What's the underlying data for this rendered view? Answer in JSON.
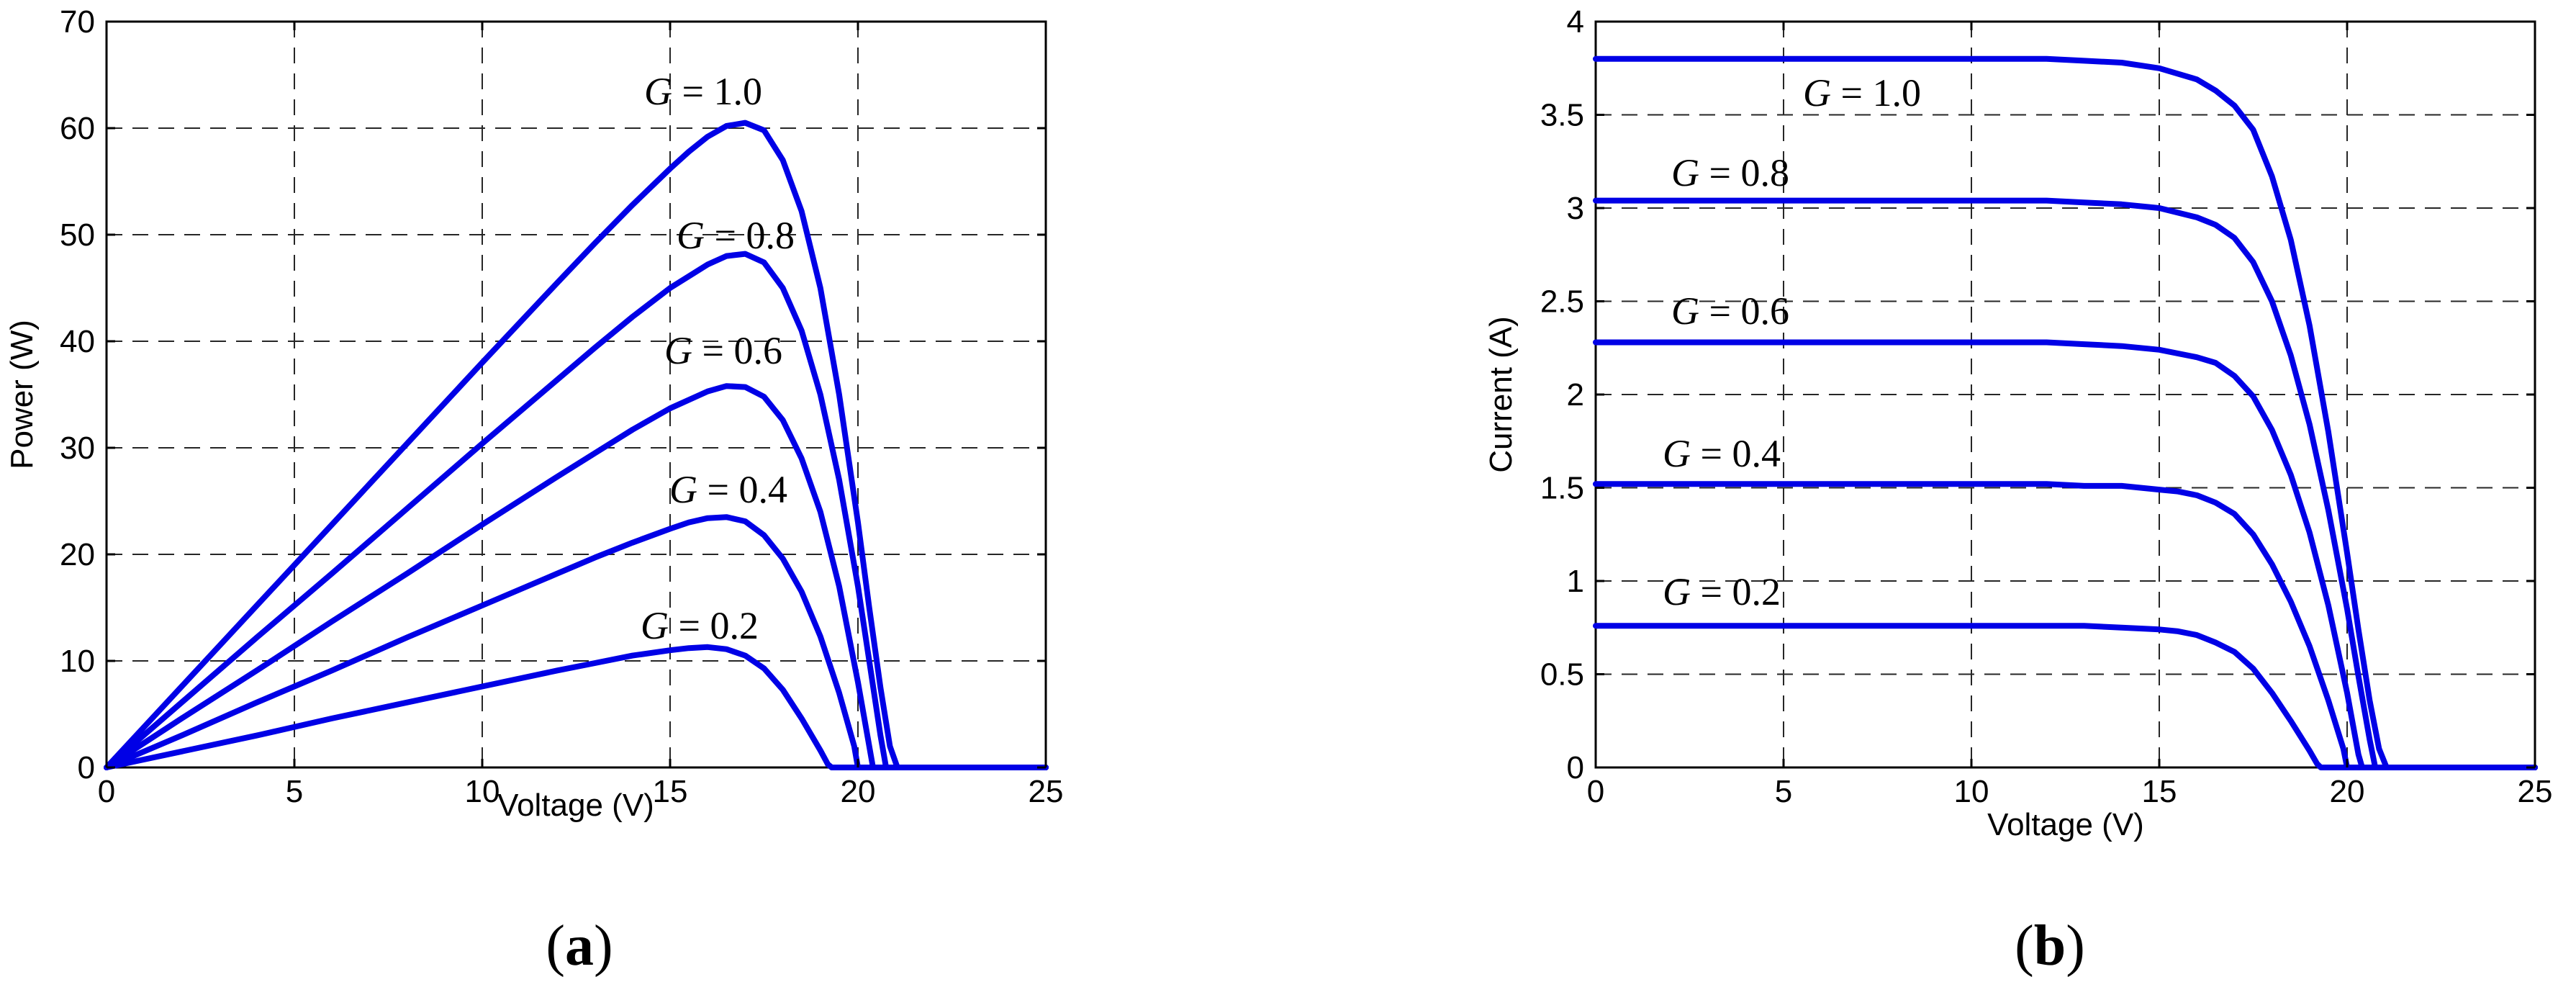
{
  "chart_data": [
    {
      "type": "line",
      "panel_label_open": "(",
      "panel_label": "a",
      "panel_label_close": ")",
      "xlabel": "Voltage (V)",
      "ylabel": "Power (W)",
      "xlim": [
        0,
        25
      ],
      "ylim": [
        0,
        70
      ],
      "xticks": [
        0,
        5,
        10,
        15,
        20,
        25
      ],
      "yticks": [
        0,
        10,
        20,
        30,
        40,
        50,
        60,
        70
      ],
      "grid": true,
      "line_color": "#0000e6",
      "series": [
        {
          "name": "G = 1.0",
          "label_g": "G",
          "label_eq": " = 1.0",
          "x": [
            0,
            2,
            4,
            6,
            8,
            10,
            12,
            13,
            14,
            15,
            15.5,
            16,
            16.5,
            17,
            17.5,
            18,
            18.5,
            19,
            19.5,
            20,
            20.3,
            20.6,
            20.85,
            21.05,
            21.1,
            25
          ],
          "y": [
            0,
            7.6,
            15.2,
            22.8,
            30.4,
            38.0,
            45.5,
            49.2,
            52.8,
            56.2,
            57.8,
            59.2,
            60.2,
            60.5,
            59.8,
            57.0,
            52.2,
            45.0,
            35.0,
            23.0,
            15.0,
            7.5,
            2.0,
            0,
            0,
            0
          ]
        },
        {
          "name": "G = 0.8",
          "label_g": "G",
          "label_eq": " = 0.8",
          "x": [
            0,
            2,
            4,
            6,
            8,
            10,
            12,
            13,
            14,
            15,
            16,
            16.5,
            17,
            17.5,
            18,
            18.5,
            19,
            19.5,
            20,
            20.3,
            20.6,
            20.75,
            25
          ],
          "y": [
            0,
            6.1,
            12.2,
            18.2,
            24.3,
            30.4,
            36.4,
            39.4,
            42.3,
            45.0,
            47.2,
            48.0,
            48.2,
            47.4,
            45.0,
            41.0,
            35.0,
            27.0,
            17.0,
            10.0,
            3.0,
            0,
            0
          ]
        },
        {
          "name": "G = 0.6",
          "label_g": "G",
          "label_eq": " = 0.6",
          "x": [
            0,
            2,
            4,
            6,
            8,
            10,
            12,
            13,
            14,
            15,
            16,
            16.5,
            17,
            17.5,
            18,
            18.5,
            19,
            19.5,
            20,
            20.3,
            20.4,
            25
          ],
          "y": [
            0,
            4.6,
            9.1,
            13.7,
            18.2,
            22.8,
            27.3,
            29.5,
            31.7,
            33.7,
            35.3,
            35.8,
            35.7,
            34.8,
            32.6,
            29.0,
            24.0,
            17.0,
            8.0,
            2.0,
            0,
            0
          ]
        },
        {
          "name": "G = 0.4",
          "label_g": "G",
          "label_eq": " = 0.4",
          "x": [
            0,
            2,
            4,
            6,
            8,
            10,
            12,
            13,
            14,
            15,
            15.5,
            16,
            16.5,
            17,
            17.5,
            18,
            18.5,
            19,
            19.5,
            19.9,
            20.0,
            25
          ],
          "y": [
            0,
            3.0,
            6.1,
            9.1,
            12.2,
            15.2,
            18.2,
            19.7,
            21.1,
            22.4,
            23.0,
            23.4,
            23.5,
            23.1,
            21.8,
            19.6,
            16.5,
            12.3,
            7.0,
            2.0,
            0,
            0
          ]
        },
        {
          "name": "G = 0.2",
          "label_g": "G",
          "label_eq": " = 0.2",
          "x": [
            0,
            2,
            4,
            6,
            8,
            10,
            12,
            13,
            14,
            15,
            15.5,
            16,
            16.5,
            17,
            17.5,
            18,
            18.5,
            19,
            19.2,
            19.3,
            25
          ],
          "y": [
            0,
            1.5,
            3.0,
            4.6,
            6.1,
            7.6,
            9.1,
            9.8,
            10.5,
            11.0,
            11.2,
            11.3,
            11.1,
            10.5,
            9.3,
            7.3,
            4.6,
            1.6,
            0.3,
            0,
            0
          ]
        }
      ]
    },
    {
      "type": "line",
      "panel_label_open": "(",
      "panel_label": "b",
      "panel_label_close": ")",
      "xlabel": "Voltage (V)",
      "ylabel": "Current (A)",
      "xlim": [
        0,
        25
      ],
      "ylim": [
        0,
        4
      ],
      "xticks": [
        0,
        5,
        10,
        15,
        20,
        25
      ],
      "yticks": [
        0,
        0.5,
        1,
        1.5,
        2,
        2.5,
        3,
        3.5,
        4
      ],
      "grid": true,
      "line_color": "#0000e6",
      "series": [
        {
          "name": "G = 1.0",
          "label_g": "G",
          "label_eq": " = 1.0",
          "x": [
            0,
            10,
            12,
            13,
            14,
            15,
            16,
            16.5,
            17,
            17.5,
            18,
            18.5,
            19,
            19.5,
            20,
            20.3,
            20.6,
            20.85,
            21.05,
            21.1,
            25
          ],
          "y": [
            3.8,
            3.8,
            3.8,
            3.79,
            3.78,
            3.75,
            3.69,
            3.63,
            3.55,
            3.42,
            3.17,
            2.83,
            2.37,
            1.8,
            1.15,
            0.74,
            0.36,
            0.1,
            0,
            0,
            0
          ]
        },
        {
          "name": "G = 0.8",
          "label_g": "G",
          "label_eq": " = 0.8",
          "x": [
            0,
            10,
            12,
            13,
            14,
            15,
            16,
            16.5,
            17,
            17.5,
            18,
            18.5,
            19,
            19.5,
            20,
            20.3,
            20.6,
            20.75,
            25
          ],
          "y": [
            3.04,
            3.04,
            3.04,
            3.03,
            3.02,
            3.0,
            2.95,
            2.91,
            2.84,
            2.71,
            2.5,
            2.21,
            1.84,
            1.38,
            0.85,
            0.49,
            0.15,
            0,
            0
          ]
        },
        {
          "name": "G = 0.6",
          "label_g": "G",
          "label_eq": " = 0.6",
          "x": [
            0,
            10,
            12,
            13,
            14,
            15,
            16,
            16.5,
            17,
            17.5,
            18,
            18.5,
            19,
            19.5,
            20,
            20.3,
            20.4,
            25
          ],
          "y": [
            2.28,
            2.28,
            2.28,
            2.27,
            2.26,
            2.24,
            2.2,
            2.17,
            2.1,
            1.99,
            1.81,
            1.57,
            1.26,
            0.87,
            0.4,
            0.07,
            0,
            0
          ]
        },
        {
          "name": "G = 0.4",
          "label_g": "G",
          "label_eq": " = 0.4",
          "x": [
            0,
            10,
            12,
            13,
            14,
            15,
            15.5,
            16,
            16.5,
            17,
            17.5,
            18,
            18.5,
            19,
            19.5,
            19.9,
            20.0,
            25
          ],
          "y": [
            1.52,
            1.52,
            1.52,
            1.51,
            1.51,
            1.49,
            1.48,
            1.46,
            1.42,
            1.36,
            1.25,
            1.09,
            0.89,
            0.65,
            0.36,
            0.1,
            0,
            0
          ]
        },
        {
          "name": "G = 0.2",
          "label_g": "G",
          "label_eq": " = 0.2",
          "x": [
            0,
            10,
            12,
            13,
            14,
            15,
            15.5,
            16,
            16.5,
            17,
            17.5,
            18,
            18.5,
            19,
            19.2,
            19.3,
            25
          ],
          "y": [
            0.76,
            0.76,
            0.76,
            0.76,
            0.75,
            0.74,
            0.73,
            0.71,
            0.67,
            0.62,
            0.53,
            0.4,
            0.25,
            0.09,
            0.02,
            0,
            0
          ]
        }
      ]
    }
  ]
}
